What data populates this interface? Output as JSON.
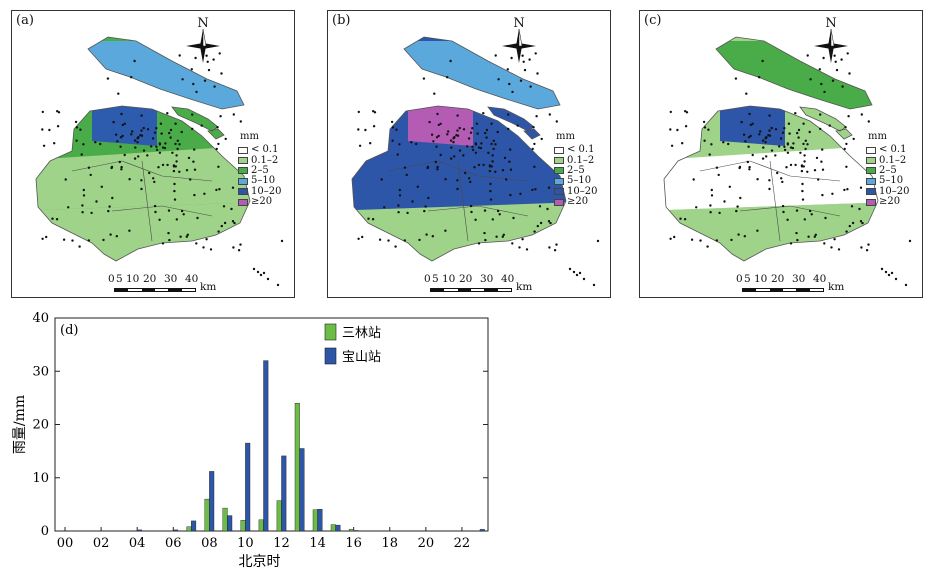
{
  "maps": [
    {
      "label": "(a)",
      "fills": [
        "#4aac48",
        "#5ba8dd",
        "#9fd389",
        "#9fd389",
        "#2d5bad"
      ]
    },
    {
      "label": "(b)",
      "fills": [
        "#2d55a8",
        "#5ba8dd",
        "#2d55a8",
        "#9fd389",
        "#b45bb3"
      ]
    },
    {
      "label": "(c)",
      "fills": [
        "#9fd389",
        "#4aac48",
        "#ffffff",
        "#9fd389",
        "#2d55a8"
      ]
    }
  ],
  "compass_label": "N",
  "legend": {
    "unit": "mm",
    "items": [
      {
        "label": "< 0.1",
        "color": "#ffffff"
      },
      {
        "label": "0.1–2",
        "color": "#9fd389"
      },
      {
        "label": "2–5",
        "color": "#4aac48"
      },
      {
        "label": "5–10",
        "color": "#5ba8dd"
      },
      {
        "label": "10–20",
        "color": "#2d55a8"
      },
      {
        "label": "≥20",
        "color": "#b45bb3"
      }
    ]
  },
  "scale_bar": {
    "ticks": [
      "0",
      "5",
      "10",
      "20",
      "30",
      "40"
    ],
    "unit": "km"
  },
  "chart_data": {
    "type": "bar",
    "label": "(d)",
    "xlabel": "北京时",
    "ylabel": "雨量/mm",
    "ylim": [
      0,
      40
    ],
    "yticks": [
      0,
      10,
      20,
      30,
      40
    ],
    "xticks": [
      "00",
      "02",
      "04",
      "06",
      "08",
      "10",
      "12",
      "14",
      "16",
      "18",
      "20",
      "22"
    ],
    "categories": [
      0,
      1,
      2,
      3,
      4,
      5,
      6,
      7,
      8,
      9,
      10,
      11,
      12,
      13,
      14,
      15,
      16,
      17,
      18,
      19,
      20,
      21,
      22,
      23
    ],
    "legend_position": "top-right",
    "series": [
      {
        "name": "三林站",
        "color": "#6cbd45",
        "values": [
          0,
          0,
          0,
          0,
          0,
          0,
          0,
          0.8,
          6,
          4.3,
          2,
          2.1,
          5.7,
          24,
          4,
          1.2,
          0.3,
          0,
          0,
          0,
          0,
          0,
          0,
          0
        ]
      },
      {
        "name": "宝山站",
        "color": "#2f56a6",
        "values": [
          0,
          0,
          0,
          0,
          0.2,
          0,
          0.2,
          1.9,
          11.2,
          2.9,
          16.5,
          32,
          14.1,
          15.5,
          4.1,
          1.1,
          0.1,
          0,
          0,
          0,
          0,
          0,
          0,
          0.3
        ]
      }
    ]
  }
}
